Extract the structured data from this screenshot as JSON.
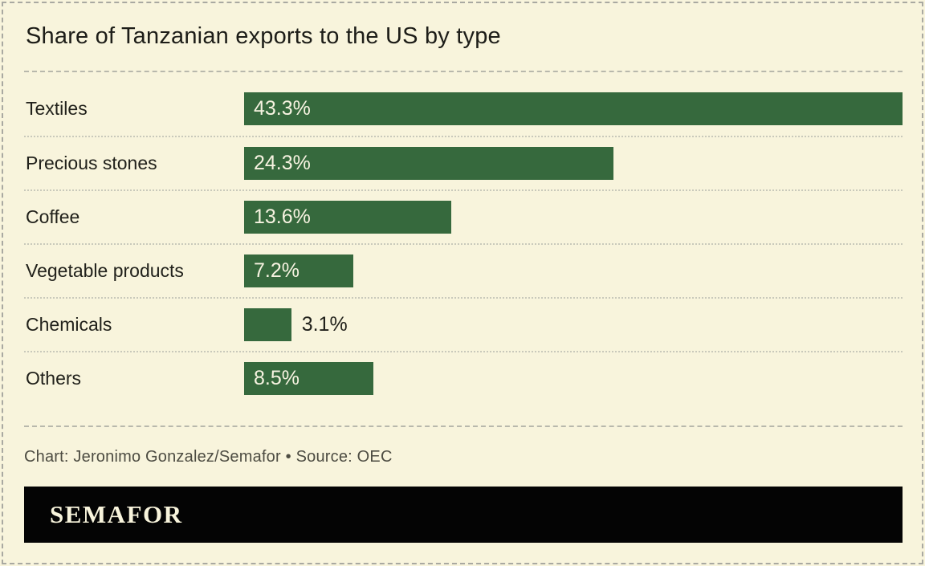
{
  "title": "Share of Tanzanian exports to the US by type",
  "chart_data": {
    "type": "bar",
    "orientation": "horizontal",
    "categories": [
      "Textiles",
      "Precious stones",
      "Coffee",
      "Vegetable products",
      "Chemicals",
      "Others"
    ],
    "values": [
      43.3,
      24.3,
      13.6,
      7.2,
      3.1,
      8.5
    ],
    "value_labels": [
      "43.3%",
      "24.3%",
      "13.6%",
      "7.2%",
      "3.1%",
      "8.5%"
    ],
    "xlabel": "",
    "ylabel": "",
    "xlim": [
      0,
      43.3
    ],
    "grid": "dotted separators between category rows",
    "legend": "none",
    "bar_color": "#36693d",
    "value_label_color_inside": "#f7f3e1",
    "value_label_color_outside": "#21211b",
    "value_label_rule": "inside-left of bar, outside-right when bar too short (Chemicals)"
  },
  "footer": {
    "credit": "Chart: Jeronimo Gonzalez/Semafor • Source: OEC"
  },
  "logo": {
    "text": "SEMAFOR",
    "background": "#040404",
    "color": "#f8f4dc"
  },
  "colors": {
    "page_background": "#f8f4dc",
    "bar": "#36693d",
    "title_text": "#1d1d18",
    "category_text": "#21211b",
    "footer_text": "#4d4c42",
    "dashed_border": "#a9a9a1",
    "dotted_separator": "#c9c9bb"
  }
}
